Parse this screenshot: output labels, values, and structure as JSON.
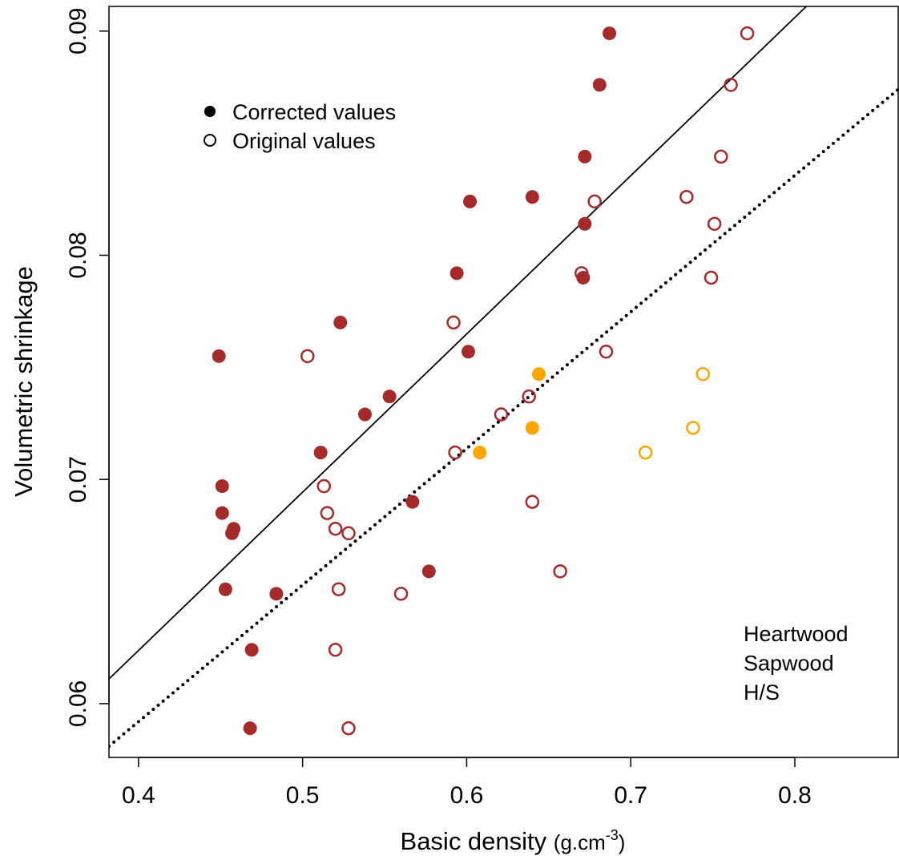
{
  "chart_data": {
    "type": "scatter",
    "ylabel": "Volumetric shrinkage",
    "xlabel": [
      "Basic density ",
      "(g.cm",
      "-3",
      ")"
    ],
    "xlim": [
      0.382,
      0.863
    ],
    "ylim": [
      0.0576,
      0.0911
    ],
    "xticks": [
      0.4,
      0.5,
      0.6,
      0.7,
      0.8
    ],
    "yticks": [
      0.06,
      0.07,
      0.08,
      0.09
    ],
    "series": [
      {
        "color": "#a52a2a",
        "filled": true,
        "x": [
          0.449,
          0.451,
          0.451,
          0.458,
          0.457,
          0.453,
          0.469,
          0.468,
          0.484,
          0.511,
          0.523,
          0.538,
          0.553,
          0.567,
          0.577,
          0.594,
          0.601,
          0.602,
          0.64,
          0.672,
          0.672,
          0.671,
          0.681,
          0.687
        ],
        "y": [
          0.0755,
          0.0697,
          0.0685,
          0.0678,
          0.0676,
          0.0651,
          0.0624,
          0.0589,
          0.0649,
          0.0712,
          0.077,
          0.0729,
          0.0737,
          0.069,
          0.0659,
          0.0792,
          0.0757,
          0.0824,
          0.0826,
          0.0844,
          0.0814,
          0.079,
          0.0876,
          0.0899
        ]
      },
      {
        "color": "#a52a2a",
        "filled": false,
        "x": [
          0.503,
          0.513,
          0.515,
          0.52,
          0.528,
          0.522,
          0.52,
          0.528,
          0.56,
          0.593,
          0.592,
          0.621,
          0.638,
          0.64,
          0.657,
          0.67,
          0.685,
          0.678,
          0.734,
          0.755,
          0.751,
          0.749,
          0.761,
          0.771
        ],
        "y": [
          0.0755,
          0.0697,
          0.0685,
          0.0678,
          0.0676,
          0.0651,
          0.0624,
          0.0589,
          0.0649,
          0.0712,
          0.077,
          0.0729,
          0.0737,
          0.069,
          0.0659,
          0.0792,
          0.0757,
          0.0824,
          0.0826,
          0.0844,
          0.0814,
          0.079,
          0.0876,
          0.0899
        ]
      },
      {
        "color": "#ffa500",
        "filled": true,
        "x": [
          0.608,
          0.64,
          0.644
        ],
        "y": [
          0.0712,
          0.0723,
          0.0747
        ]
      },
      {
        "color": "#ffa500",
        "filled": false,
        "x": [
          0.709,
          0.738,
          0.744
        ],
        "y": [
          0.0712,
          0.0723,
          0.0747
        ]
      }
    ],
    "lines": [
      {
        "style": "solid",
        "x": [
          0.382,
          0.807
        ],
        "y": [
          0.0611,
          0.0911
        ]
      },
      {
        "style": "dotted",
        "x": [
          0.382,
          0.863
        ],
        "y": [
          0.0581,
          0.0874
        ]
      }
    ],
    "legend": [
      {
        "label": "Corrected values",
        "filled": true
      },
      {
        "label": "Original values",
        "filled": false
      }
    ],
    "color_legend": [
      {
        "label": "Heartwood",
        "color": "#a52a2a"
      },
      {
        "label": "Sapwood",
        "color": "#ffd700"
      },
      {
        "label": "H/S",
        "color": "#ffa500"
      }
    ]
  }
}
